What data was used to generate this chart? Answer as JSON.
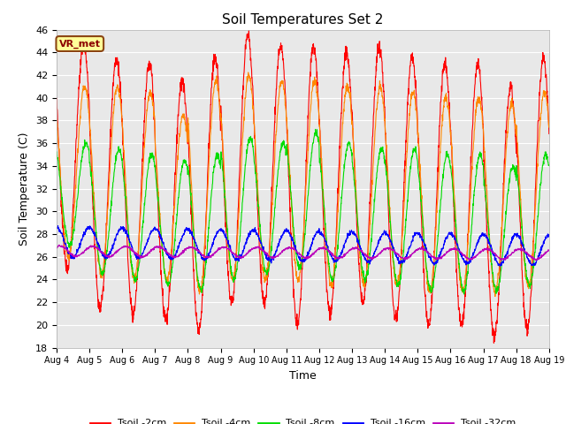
{
  "title": "Soil Temperatures Set 2",
  "xlabel": "Time",
  "ylabel": "Soil Temperature (C)",
  "ylim": [
    18,
    46
  ],
  "yticks": [
    18,
    20,
    22,
    24,
    26,
    28,
    30,
    32,
    34,
    36,
    38,
    40,
    42,
    44,
    46
  ],
  "x_labels": [
    "Aug 4",
    "Aug 5",
    "Aug 6",
    "Aug 7",
    "Aug 8",
    "Aug 9",
    "Aug 10",
    "Aug 11",
    "Aug 12",
    "Aug 13",
    "Aug 14",
    "Aug 15",
    "Aug 16",
    "Aug 17",
    "Aug 18",
    "Aug 19"
  ],
  "colors": {
    "tsoil_2cm": "#ff0000",
    "tsoil_4cm": "#ff8800",
    "tsoil_8cm": "#00dd00",
    "tsoil_16cm": "#0000ff",
    "tsoil_32cm": "#bb00bb"
  },
  "legend_entries": [
    "Tsoil -2cm",
    "Tsoil -4cm",
    "Tsoil -8cm",
    "Tsoil -16cm",
    "Tsoil -32cm"
  ],
  "annotation_box": "VR_met",
  "plot_bg": "#e8e8e8",
  "fig_bg": "#ffffff",
  "num_days": 15,
  "pts_per_day": 144
}
